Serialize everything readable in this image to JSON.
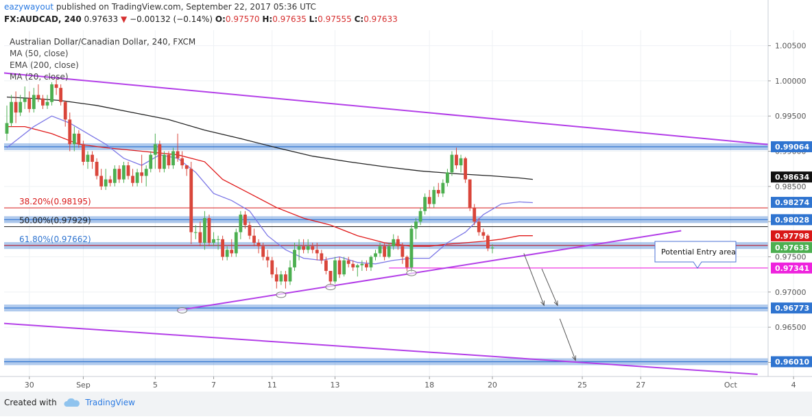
{
  "header": {
    "user": "eazywayout",
    "published_text": " published on TradingView.com, September 22, 2017 05:36 UTC",
    "symbol_line": {
      "symbol": "FX:AUDCAD, 240",
      "last": "0.97633",
      "change": "−0.00132 (−0.14%)",
      "open_label": "O:",
      "open": "0.97570",
      "high_label": "H:",
      "high": "0.97635",
      "low_label": "L:",
      "low": "0.97555",
      "close_label": "C:",
      "close": "0.97633"
    }
  },
  "legend": [
    "Australian Dollar/Canadian Dollar, 240, FXCM",
    "MA (50, close)",
    "EMA (200, close)",
    "MA (20, close)"
  ],
  "footer": {
    "created_with": "Created with",
    "brand": "TradingView"
  },
  "colors": {
    "up": "#4caf50",
    "down": "#d9453a",
    "ma50": "#e01818",
    "ema200": "#222222",
    "ma20": "#7b76e6",
    "trend": "#b33ee8",
    "zone": "#2f74d0",
    "fib": "#d81818",
    "fib_mid": "#222222",
    "magenta": "#ee22dd",
    "price_up": "#4caf50",
    "price_down": "#d9453a",
    "axis_text": "#555555"
  },
  "chart_data": {
    "type": "candlestick",
    "title": "Australian Dollar/Canadian Dollar, 240, FXCM",
    "ylim": [
      0.958,
      1.0072
    ],
    "y_ticks": [
      1.005,
      1.0,
      0.995,
      0.99,
      0.985,
      0.98,
      0.975,
      0.97,
      0.965,
      0.96
    ],
    "y_tick_labels": [
      "1.00500",
      "1.00000",
      "0.99500",
      "0.99000",
      "0.98500",
      "0.98000",
      "0.97500",
      "0.97000",
      "0.96500",
      "0.96000"
    ],
    "x_ticks": [
      {
        "label": "30",
        "bar": 5
      },
      {
        "label": "Sep",
        "bar": 17
      },
      {
        "label": "5",
        "bar": 33
      },
      {
        "label": "7",
        "bar": 46
      },
      {
        "label": "11",
        "bar": 59
      },
      {
        "label": "13",
        "bar": 73
      },
      {
        "label": "18",
        "bar": 94
      },
      {
        "label": "20",
        "bar": 108
      },
      {
        "label": "25",
        "bar": 128
      },
      {
        "label": "27",
        "bar": 141
      },
      {
        "label": "Oct",
        "bar": 161
      },
      {
        "label": "4",
        "bar": 175
      }
    ],
    "candles": [
      [
        0.9925,
        0.9965,
        0.9915,
        0.994
      ],
      [
        0.994,
        0.998,
        0.9935,
        0.997
      ],
      [
        0.997,
        0.9985,
        0.994,
        0.9955
      ],
      [
        0.9955,
        0.998,
        0.995,
        0.997
      ],
      [
        0.997,
        0.9992,
        0.996,
        0.9975
      ],
      [
        0.9975,
        0.9985,
        0.9955,
        0.996
      ],
      [
        0.996,
        0.999,
        0.9955,
        0.998
      ],
      [
        0.998,
        0.9995,
        0.997,
        0.9975
      ],
      [
        0.9975,
        0.998,
        0.996,
        0.9965
      ],
      [
        0.9965,
        0.998,
        0.996,
        0.997
      ],
      [
        0.997,
        0.9998,
        0.9965,
        0.9995
      ],
      [
        0.9995,
        1.0002,
        0.998,
        0.999
      ],
      [
        0.999,
        0.9995,
        0.9965,
        0.997
      ],
      [
        0.997,
        0.9972,
        0.9935,
        0.9945
      ],
      [
        0.9945,
        0.9955,
        0.99,
        0.991
      ],
      [
        0.991,
        0.9935,
        0.99,
        0.9925
      ],
      [
        0.9925,
        0.993,
        0.9905,
        0.991
      ],
      [
        0.991,
        0.9915,
        0.988,
        0.9885
      ],
      [
        0.9885,
        0.99,
        0.9875,
        0.9895
      ],
      [
        0.9895,
        0.99,
        0.9875,
        0.9885
      ],
      [
        0.9885,
        0.989,
        0.986,
        0.9865
      ],
      [
        0.9865,
        0.9875,
        0.9845,
        0.985
      ],
      [
        0.985,
        0.9875,
        0.9845,
        0.986
      ],
      [
        0.986,
        0.9865,
        0.985,
        0.9855
      ],
      [
        0.9855,
        0.988,
        0.985,
        0.9875
      ],
      [
        0.9875,
        0.988,
        0.9855,
        0.986
      ],
      [
        0.986,
        0.9885,
        0.9855,
        0.988
      ],
      [
        0.988,
        0.9885,
        0.986,
        0.9865
      ],
      [
        0.9865,
        0.9875,
        0.985,
        0.9855
      ],
      [
        0.9855,
        0.9875,
        0.985,
        0.987
      ],
      [
        0.987,
        0.9895,
        0.9855,
        0.9865
      ],
      [
        0.9865,
        0.988,
        0.985,
        0.9875
      ],
      [
        0.9875,
        0.99,
        0.987,
        0.9895
      ],
      [
        0.9895,
        0.9925,
        0.9875,
        0.991
      ],
      [
        0.991,
        0.9915,
        0.987,
        0.9875
      ],
      [
        0.9875,
        0.99,
        0.987,
        0.9895
      ],
      [
        0.9895,
        0.99,
        0.9875,
        0.988
      ],
      [
        0.988,
        0.9905,
        0.9875,
        0.99
      ],
      [
        0.99,
        0.9925,
        0.9885,
        0.989
      ],
      [
        0.989,
        0.99,
        0.9875,
        0.988
      ],
      [
        0.988,
        0.988,
        0.9865,
        0.9875
      ],
      [
        0.9875,
        0.9885,
        0.9768,
        0.9785
      ],
      [
        0.9785,
        0.9795,
        0.9775,
        0.9785
      ],
      [
        0.9785,
        0.98,
        0.9765,
        0.977
      ],
      [
        0.977,
        0.9815,
        0.976,
        0.9805
      ],
      [
        0.9805,
        0.981,
        0.9765,
        0.977
      ],
      [
        0.977,
        0.9785,
        0.9765,
        0.9775
      ],
      [
        0.9775,
        0.978,
        0.976,
        0.9775
      ],
      [
        0.9775,
        0.978,
        0.9745,
        0.975
      ],
      [
        0.975,
        0.9765,
        0.9745,
        0.976
      ],
      [
        0.976,
        0.9775,
        0.975,
        0.9755
      ],
      [
        0.9755,
        0.979,
        0.975,
        0.9785
      ],
      [
        0.9785,
        0.9815,
        0.9775,
        0.981
      ],
      [
        0.981,
        0.9815,
        0.979,
        0.9795
      ],
      [
        0.9795,
        0.98,
        0.9775,
        0.978
      ],
      [
        0.978,
        0.979,
        0.9765,
        0.977
      ],
      [
        0.977,
        0.9775,
        0.9755,
        0.9765
      ],
      [
        0.9765,
        0.977,
        0.9745,
        0.975
      ],
      [
        0.975,
        0.976,
        0.9735,
        0.9745
      ],
      [
        0.9745,
        0.975,
        0.972,
        0.9725
      ],
      [
        0.9725,
        0.9735,
        0.9705,
        0.9715
      ],
      [
        0.9715,
        0.973,
        0.971,
        0.9725
      ],
      [
        0.9725,
        0.973,
        0.9705,
        0.9715
      ],
      [
        0.9715,
        0.9745,
        0.971,
        0.9735
      ],
      [
        0.9735,
        0.977,
        0.973,
        0.976
      ],
      [
        0.976,
        0.9775,
        0.9745,
        0.9765
      ],
      [
        0.9765,
        0.9775,
        0.9755,
        0.976
      ],
      [
        0.976,
        0.9775,
        0.9755,
        0.9765
      ],
      [
        0.9765,
        0.977,
        0.9755,
        0.976
      ],
      [
        0.976,
        0.977,
        0.9745,
        0.9755
      ],
      [
        0.9755,
        0.976,
        0.974,
        0.9745
      ],
      [
        0.9745,
        0.975,
        0.9725,
        0.973
      ],
      [
        0.973,
        0.973,
        0.971,
        0.9715
      ],
      [
        0.9715,
        0.975,
        0.9712,
        0.9745
      ],
      [
        0.9745,
        0.975,
        0.972,
        0.9725
      ],
      [
        0.9725,
        0.975,
        0.9722,
        0.9745
      ],
      [
        0.9745,
        0.975,
        0.9735,
        0.974
      ],
      [
        0.974,
        0.9745,
        0.973,
        0.9735
      ],
      [
        0.9735,
        0.974,
        0.9722,
        0.9738
      ],
      [
        0.9738,
        0.9745,
        0.973,
        0.974
      ],
      [
        0.974,
        0.9745,
        0.973,
        0.9735
      ],
      [
        0.9735,
        0.9752,
        0.973,
        0.975
      ],
      [
        0.975,
        0.976,
        0.9745,
        0.9755
      ],
      [
        0.9755,
        0.977,
        0.975,
        0.9765
      ],
      [
        0.9765,
        0.977,
        0.9745,
        0.975
      ],
      [
        0.975,
        0.977,
        0.9748,
        0.9765
      ],
      [
        0.9765,
        0.9782,
        0.976,
        0.9775
      ],
      [
        0.9775,
        0.978,
        0.976,
        0.9765
      ],
      [
        0.9765,
        0.977,
        0.974,
        0.975
      ],
      [
        0.975,
        0.9752,
        0.973,
        0.9735
      ],
      [
        0.9735,
        0.9795,
        0.9728,
        0.979
      ],
      [
        0.979,
        0.9805,
        0.9775,
        0.98
      ],
      [
        0.98,
        0.982,
        0.9795,
        0.9815
      ],
      [
        0.9815,
        0.984,
        0.981,
        0.9835
      ],
      [
        0.9835,
        0.9845,
        0.982,
        0.9825
      ],
      [
        0.9825,
        0.985,
        0.982,
        0.9845
      ],
      [
        0.9845,
        0.9855,
        0.9835,
        0.984
      ],
      [
        0.984,
        0.986,
        0.9835,
        0.9855
      ],
      [
        0.9855,
        0.9875,
        0.985,
        0.987
      ],
      [
        0.987,
        0.99,
        0.9865,
        0.9895
      ],
      [
        0.9895,
        0.9905,
        0.9875,
        0.988
      ],
      [
        0.988,
        0.9895,
        0.987,
        0.989
      ],
      [
        0.989,
        0.9892,
        0.9855,
        0.986
      ],
      [
        0.986,
        0.986,
        0.9815,
        0.982
      ],
      [
        0.982,
        0.9825,
        0.9795,
        0.98
      ],
      [
        0.98,
        0.9805,
        0.978,
        0.9785
      ],
      [
        0.9785,
        0.979,
        0.9775,
        0.978
      ],
      [
        0.978,
        0.9782,
        0.9758,
        0.9762
      ],
      [
        0.9762,
        0.9768,
        0.9755,
        0.9763
      ]
    ],
    "series": [
      {
        "name": "MA (50, close)",
        "points": [
          [
            0,
            0.9935
          ],
          [
            4,
            0.9935
          ],
          [
            10,
            0.9925
          ],
          [
            16,
            0.991
          ],
          [
            22,
            0.9905
          ],
          [
            30,
            0.99
          ],
          [
            38,
            0.9895
          ],
          [
            44,
            0.9885
          ],
          [
            48,
            0.986
          ],
          [
            54,
            0.984
          ],
          [
            60,
            0.982
          ],
          [
            66,
            0.9805
          ],
          [
            72,
            0.9795
          ],
          [
            78,
            0.978
          ],
          [
            84,
            0.977
          ],
          [
            90,
            0.9765
          ],
          [
            94,
            0.9765
          ],
          [
            98,
            0.9768
          ],
          [
            102,
            0.977
          ],
          [
            106,
            0.9772
          ],
          [
            110,
            0.9775
          ],
          [
            114,
            0.978
          ],
          [
            117,
            0.978
          ]
        ]
      },
      {
        "name": "EMA (200, close)",
        "points": [
          [
            0,
            0.9977
          ],
          [
            6,
            0.9975
          ],
          [
            12,
            0.9972
          ],
          [
            20,
            0.9965
          ],
          [
            28,
            0.9955
          ],
          [
            36,
            0.9945
          ],
          [
            44,
            0.993
          ],
          [
            52,
            0.9918
          ],
          [
            60,
            0.9905
          ],
          [
            68,
            0.9893
          ],
          [
            76,
            0.9885
          ],
          [
            84,
            0.9878
          ],
          [
            92,
            0.9872
          ],
          [
            100,
            0.9868
          ],
          [
            108,
            0.9865
          ],
          [
            114,
            0.9862
          ],
          [
            117,
            0.986
          ]
        ]
      },
      {
        "name": "MA (20, close)",
        "points": [
          [
            0,
            0.9905
          ],
          [
            6,
            0.9935
          ],
          [
            10,
            0.995
          ],
          [
            14,
            0.994
          ],
          [
            18,
            0.9925
          ],
          [
            22,
            0.991
          ],
          [
            26,
            0.989
          ],
          [
            30,
            0.988
          ],
          [
            34,
            0.9895
          ],
          [
            38,
            0.989
          ],
          [
            42,
            0.987
          ],
          [
            46,
            0.984
          ],
          [
            50,
            0.983
          ],
          [
            54,
            0.9815
          ],
          [
            58,
            0.978
          ],
          [
            62,
            0.976
          ],
          [
            66,
            0.9748
          ],
          [
            70,
            0.9745
          ],
          [
            74,
            0.975
          ],
          [
            78,
            0.9742
          ],
          [
            82,
            0.974
          ],
          [
            86,
            0.9745
          ],
          [
            90,
            0.9748
          ],
          [
            94,
            0.9748
          ],
          [
            98,
            0.977
          ],
          [
            102,
            0.9785
          ],
          [
            106,
            0.981
          ],
          [
            110,
            0.9825
          ],
          [
            114,
            0.9828
          ],
          [
            117,
            0.9827
          ]
        ]
      }
    ],
    "trendlines": [
      {
        "from": [
          -2,
          1.0012
        ],
        "to": [
          177,
          0.9905
        ]
      },
      {
        "from": [
          38,
          0.9674
        ],
        "to": [
          150,
          0.9787
        ]
      },
      {
        "from": [
          -2,
          0.9656
        ],
        "to": [
          167,
          0.9583
        ]
      }
    ],
    "zones": [
      0.99064,
      0.98028,
      0.9766,
      0.96773,
      0.9601
    ],
    "fib_levels": [
      {
        "label": "38.20%(0.98195)",
        "value": 0.98195
      },
      {
        "label": "50.00%(0.97929)",
        "value": 0.97929
      },
      {
        "label": "61.80%(0.97662)",
        "value": 0.97662
      }
    ],
    "horizontal_line": {
      "value": 0.97341,
      "from_bar": 85
    },
    "price_tags": [
      {
        "value": "0.99064",
        "price": 0.99064,
        "color": "#2f74d0"
      },
      {
        "value": "0.98634",
        "price": 0.98634,
        "color": "#111111"
      },
      {
        "value": "0.98274",
        "price": 0.98274,
        "color": "#2f74d0"
      },
      {
        "value": "0.98028",
        "price": 0.98028,
        "color": "#2f74d0"
      },
      {
        "value": "0.97798",
        "price": 0.97798,
        "color": "#d81818"
      },
      {
        "value": "0.97633",
        "price": 0.97633,
        "color": "#4caf50"
      },
      {
        "value": "0.97341",
        "price": 0.97341,
        "color": "#ee22dd"
      },
      {
        "value": "0.96773",
        "price": 0.96773,
        "color": "#2f74d0"
      },
      {
        "value": "0.96010",
        "price": 0.9601,
        "color": "#2f74d0"
      }
    ],
    "annotation": {
      "text": "Potential Entry area"
    },
    "touch_markers": [
      [
        39,
        0.9674
      ],
      [
        61,
        0.9696
      ],
      [
        72,
        0.9707
      ],
      [
        90,
        0.9727
      ]
    ],
    "arrows": [
      {
        "from": [
          115,
          0.9755
        ],
        "to": [
          119.5,
          0.9681
        ]
      },
      {
        "from": [
          119,
          0.9733
        ],
        "to": [
          122.5,
          0.9681
        ]
      },
      {
        "from": [
          123,
          0.9662
        ],
        "to": [
          126.5,
          0.9603
        ]
      }
    ]
  }
}
